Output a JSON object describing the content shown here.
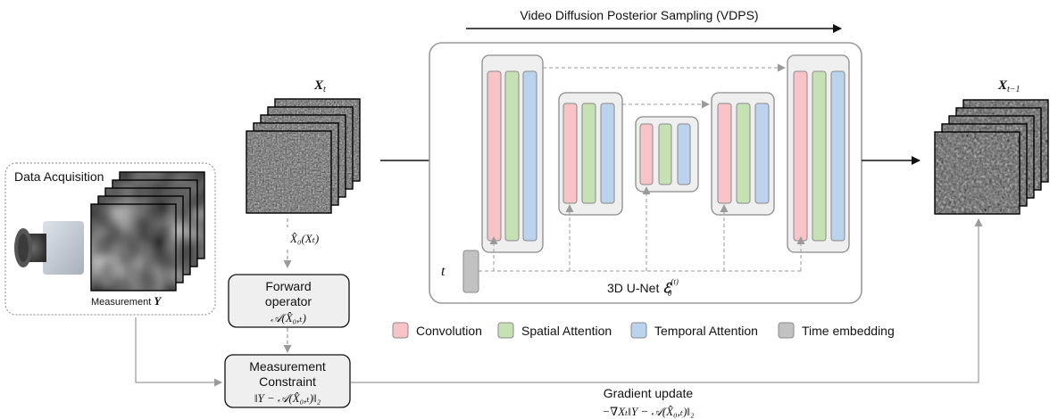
{
  "title": "Video Diffusion Posterior Sampling (VDPS)",
  "data_acquisition": {
    "label": "Data Acquisition",
    "measurement_label": "Measurement ",
    "measurement_symbol": "Y"
  },
  "input_frames": {
    "label": "X",
    "subscript": "t"
  },
  "output_frames": {
    "label": "X",
    "subscript": "t−1"
  },
  "x0_estimate": "X̂₀(Xₜ)",
  "forward_operator": {
    "line1": "Forward",
    "line2": "operator",
    "formula": "𝒜(X̂₀,ₜ)"
  },
  "measurement_constraint": {
    "line1": "Measurement",
    "line2": "Constraint",
    "formula": "‖Y − 𝒜(X̂₀,ₜ)‖₂"
  },
  "unet": {
    "label": "3D U-Net ",
    "symbol": "ℰ",
    "subscript": "θ",
    "superscript": "(t)",
    "time_input": "t"
  },
  "gradient_update": {
    "label": "Gradient update",
    "formula": "−∇Xₜ‖Y − 𝒜(X̂₀,ₜ)‖₂"
  },
  "legend": [
    {
      "label": "Convolution",
      "color": "#f8c4c8"
    },
    {
      "label": "Spatial Attention",
      "color": "#c6e2b5"
    },
    {
      "label": "Temporal Attention",
      "color": "#bcd3ee"
    },
    {
      "label": "Time embedding",
      "color": "#c2c2c2"
    }
  ],
  "colors": {
    "conv": "#f8c4c8",
    "spatial": "#c6e2b5",
    "temporal": "#bcd3ee",
    "time": "#c2c2c2",
    "block_bg": "#efefef",
    "gray_arrow": "#9a9a9a"
  }
}
